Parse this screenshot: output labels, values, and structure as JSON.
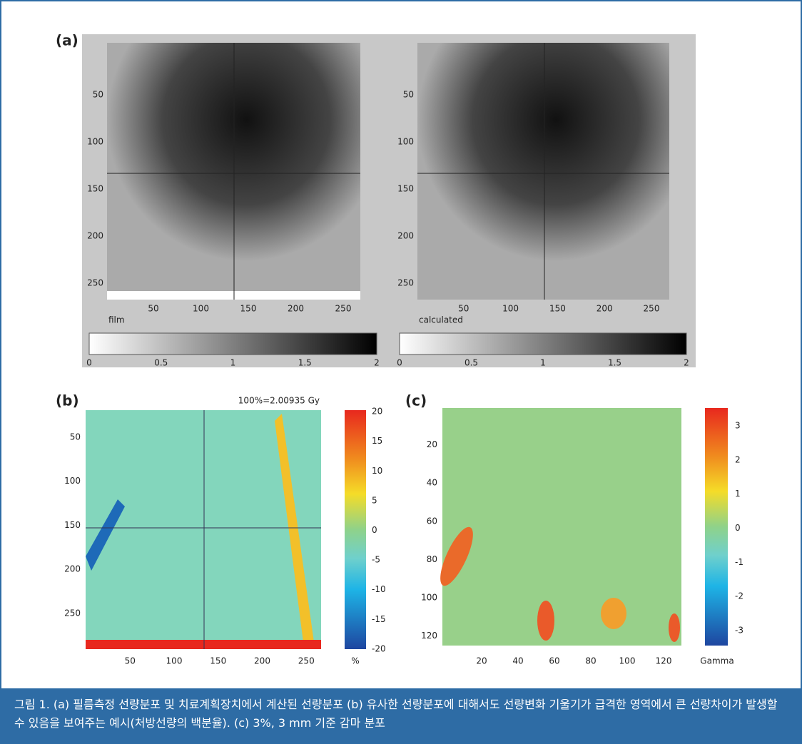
{
  "panel_a": {
    "label": "(a)",
    "left": {
      "title": "film",
      "xticks": [
        50,
        100,
        150,
        200,
        250
      ],
      "yticks": [
        50,
        100,
        150,
        200,
        250
      ],
      "colorbar_ticks": [
        0,
        0.5,
        1,
        1.5,
        2
      ]
    },
    "right": {
      "title": "calculated",
      "xticks": [
        50,
        100,
        150,
        200,
        250
      ],
      "yticks": [
        50,
        100,
        150,
        200,
        250
      ],
      "colorbar_ticks": [
        0,
        0.5,
        1,
        1.5,
        2
      ]
    }
  },
  "panel_b": {
    "label": "(b)",
    "note": "100%=2.00935 Gy",
    "xticks": [
      50,
      100,
      150,
      200,
      250
    ],
    "yticks": [
      50,
      100,
      150,
      200,
      250
    ],
    "colorbar_ticks": [
      20,
      15,
      10,
      5,
      0,
      -5,
      -10,
      -15,
      -20
    ],
    "colorbar_unit": "%"
  },
  "panel_c": {
    "label": "(c)",
    "xticks": [
      20,
      40,
      60,
      80,
      100,
      120
    ],
    "yticks": [
      20,
      40,
      60,
      80,
      100,
      120
    ],
    "colorbar_ticks": [
      3,
      2,
      1,
      0,
      -1,
      -2,
      -3
    ],
    "colorbar_unit": "Gamma"
  },
  "caption": "그림 1. (a) 필름측정 선량분포 및 치료계획장치에서 계산된 선량분포 (b) 유사한 선량분포에 대해서도 선량변화 기울기가 급격한 영역에서 큰 선량차이가 발생할 수 있음을 보여주는 예시(처방선량의 백분율). (c) 3%, 3 mm 기준 감마 분포"
}
